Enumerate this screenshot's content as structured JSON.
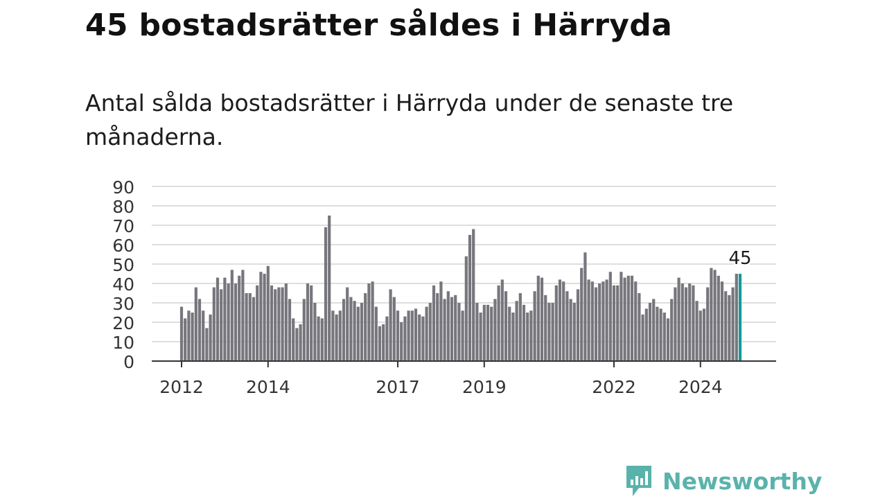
{
  "title": "45 bostadsrätter såldes i Härryda",
  "subtitle": "Antal sålda bostadsrätter i Härryda under de senaste tre månaderna.",
  "brand": {
    "name": "Newsworthy",
    "color": "#5ab3ab",
    "icon": "bar-chart-speech-bubble-icon"
  },
  "colors": {
    "bar": "#76767c",
    "highlight": "#149a98",
    "grid": "#dedede",
    "axis": "#333333"
  },
  "chart_data": {
    "type": "bar",
    "title": "",
    "xlabel": "",
    "ylabel": "",
    "ylim": [
      0,
      90
    ],
    "yticks": [
      "0",
      "10",
      "20",
      "30",
      "40",
      "50",
      "60",
      "70",
      "80",
      "90"
    ],
    "xtick_labels": [
      {
        "label": "2012",
        "index": 0
      },
      {
        "label": "2014",
        "index": 24
      },
      {
        "label": "2017",
        "index": 60
      },
      {
        "label": "2019",
        "index": 84
      },
      {
        "label": "2022",
        "index": 120
      },
      {
        "label": "2024",
        "index": 144
      }
    ],
    "grid": true,
    "highlight_index": 155,
    "highlight_label": "45",
    "values": [
      28,
      22,
      26,
      25,
      38,
      32,
      26,
      17,
      24,
      38,
      43,
      37,
      43,
      40,
      47,
      40,
      44,
      47,
      35,
      35,
      33,
      39,
      46,
      45,
      49,
      39,
      37,
      38,
      38,
      40,
      32,
      22,
      17,
      19,
      32,
      40,
      39,
      30,
      23,
      22,
      69,
      75,
      26,
      24,
      26,
      32,
      38,
      33,
      31,
      28,
      30,
      35,
      40,
      41,
      28,
      18,
      19,
      23,
      37,
      33,
      26,
      20,
      23,
      26,
      26,
      27,
      24,
      23,
      28,
      30,
      39,
      35,
      41,
      32,
      36,
      33,
      34,
      30,
      26,
      54,
      65,
      68,
      30,
      25,
      29,
      29,
      28,
      32,
      39,
      42,
      36,
      28,
      25,
      31,
      35,
      29,
      25,
      26,
      36,
      44,
      43,
      34,
      30,
      30,
      39,
      42,
      41,
      36,
      32,
      30,
      37,
      48,
      56,
      42,
      41,
      38,
      40,
      41,
      42,
      46,
      39,
      39,
      46,
      43,
      44,
      44,
      41,
      35,
      24,
      27,
      30,
      32,
      28,
      27,
      25,
      22,
      32,
      38,
      43,
      40,
      38,
      40,
      39,
      31,
      26,
      27,
      38,
      48,
      47,
      44,
      41,
      36,
      34,
      38,
      45,
      45
    ]
  }
}
